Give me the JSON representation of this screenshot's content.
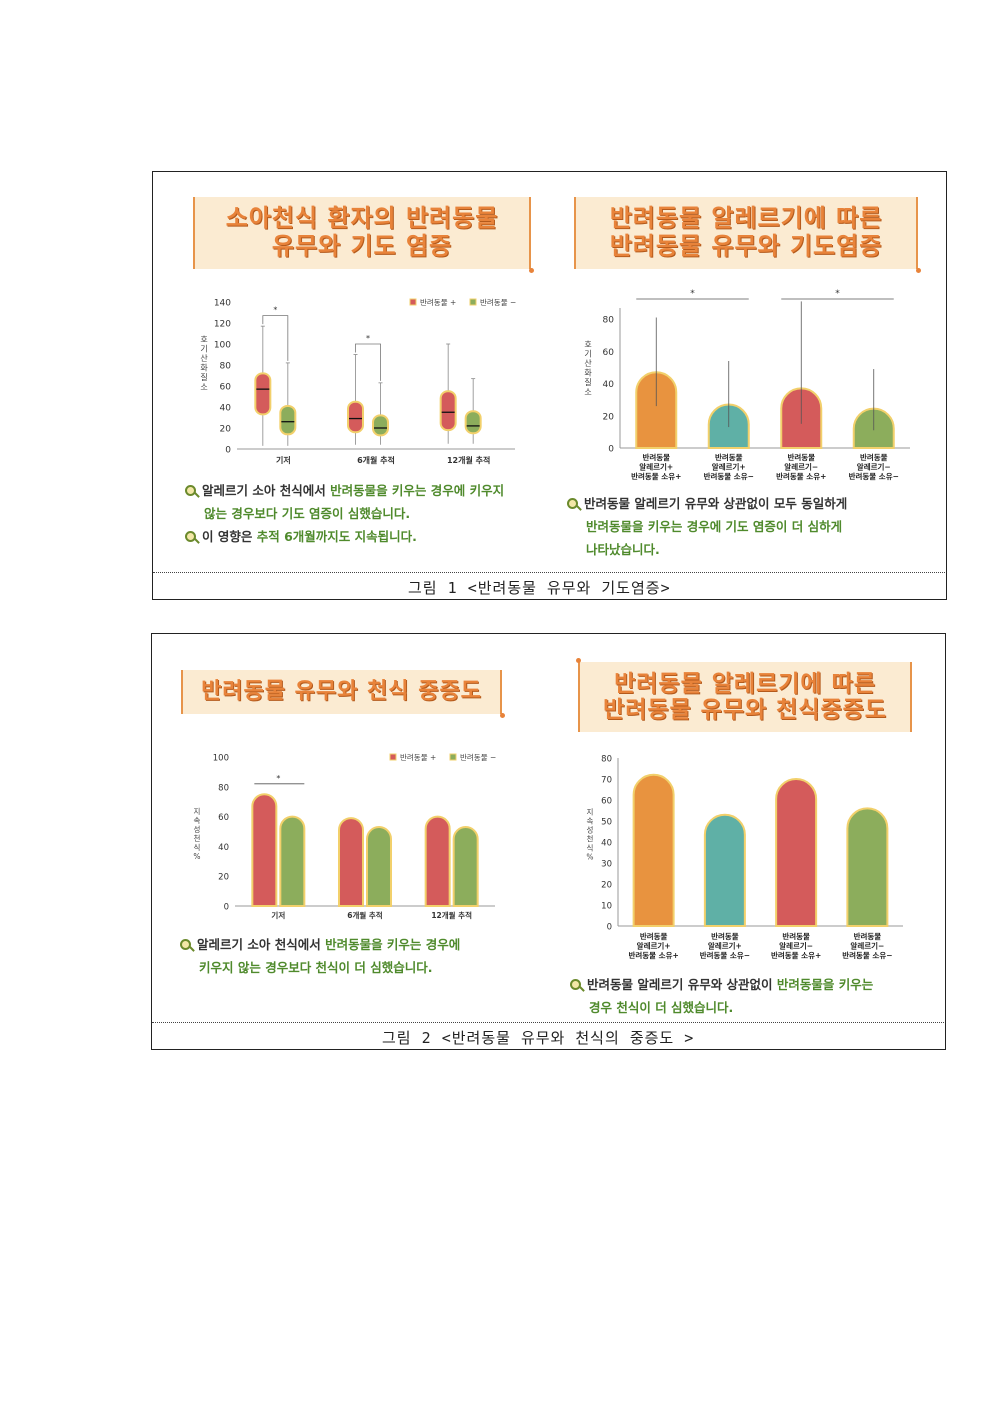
{
  "figure1": {
    "caption": "그림 1 <반려동물 유무와 기도염증>",
    "left": {
      "title_lines": [
        "소아천식 환자의 반려동물",
        "유무와 기도 염증"
      ],
      "notes": [
        {
          "segments": [
            {
              "t": "알레르기 소아 천식에서 ",
              "g": false
            },
            {
              "t": "반려동물을 키우는 경우에 키우지",
              "g": true
            }
          ],
          "cont": {
            "t": "않는 경우보다 기도 염증이 심했습니다.",
            "g": true
          }
        },
        {
          "segments": [
            {
              "t": "이 영향은 ",
              "g": false
            },
            {
              "t": "추적 6개월까지도 지속됩니다.",
              "g": true
            }
          ]
        }
      ]
    },
    "right": {
      "title_lines": [
        "반려동물 알레르기에 따른",
        "반려동물 유무와 기도염증"
      ],
      "notes": [
        {
          "segments": [
            {
              "t": "반려동물 알레르기 유무와 상관없이 모두 동일하게",
              "g": false
            }
          ],
          "cont": {
            "t": "반려동물을 키우는 경우에 기도 염증이 더 심하게",
            "g": true
          },
          "cont2": {
            "t": "나타났습니다.",
            "g": true
          }
        }
      ]
    }
  },
  "figure2": {
    "caption": "그림 2 <반려동물 유무와 천식의 중증도 >",
    "left": {
      "title_lines": [
        "반려동물 유무와 천식 중증도"
      ],
      "notes": [
        {
          "segments": [
            {
              "t": "알레르기 소아 천식에서 ",
              "g": false
            },
            {
              "t": "반려동물을 키우는 경우에",
              "g": true
            }
          ],
          "cont": {
            "t": "키우지 않는 경우보다 천식이 더 심했습니다.",
            "g": true
          }
        }
      ]
    },
    "right": {
      "title_lines": [
        "반려동물 알레르기에 따른",
        "반려동물 유무와 천식중증도"
      ],
      "notes": [
        {
          "segments": [
            {
              "t": "반려동물 알레르기 유무와 상관없이 ",
              "g": false
            },
            {
              "t": "반려동물을 키우는",
              "g": true
            }
          ],
          "cont": {
            "t": "경우 천식이 더 심했습니다.",
            "g": true
          }
        }
      ]
    }
  },
  "colors": {
    "pet_plus": "#d45b5b",
    "pet_minus": "#8cad5c",
    "orange": "#e8933f",
    "teal": "#5fb0a6",
    "outline": "#f2d06b",
    "title_bg": "#fbebd2",
    "title_text": "#e8833a",
    "note_green": "#4f8a2c"
  },
  "chart_data": [
    {
      "type": "box",
      "ylabel": "호기산화질소",
      "ylim": [
        0,
        140
      ],
      "yticks": [
        0,
        20,
        40,
        60,
        80,
        100,
        120,
        140
      ],
      "categories": [
        "기저",
        "6개월 추적",
        "12개월 추적"
      ],
      "legend": [
        "반려동물 +",
        "반려동물 −"
      ],
      "legend_position": "top-right",
      "series": [
        {
          "name": "반려동물 +",
          "color": "pet_plus",
          "boxes": [
            {
              "min": 3,
              "q1": 33,
              "median": 57,
              "q3": 72,
              "max": 117
            },
            {
              "min": 4,
              "q1": 16,
              "median": 29,
              "q3": 45,
              "max": 90
            },
            {
              "min": 5,
              "q1": 18,
              "median": 35,
              "q3": 55,
              "max": 100
            }
          ]
        },
        {
          "name": "반려동물 −",
          "color": "pet_minus",
          "boxes": [
            {
              "min": 3,
              "q1": 14,
              "median": 26,
              "q3": 41,
              "max": 82
            },
            {
              "min": 4,
              "q1": 13,
              "median": 20,
              "q3": 32,
              "max": 63
            },
            {
              "min": 5,
              "q1": 15,
              "median": 22,
              "q3": 36,
              "max": 67
            }
          ]
        }
      ],
      "significance": [
        {
          "category": 0,
          "label": "*"
        },
        {
          "category": 1,
          "label": "*"
        }
      ]
    },
    {
      "type": "bar",
      "ylabel": "호기산화질소",
      "ylim": [
        0,
        90
      ],
      "yticks": [
        0,
        20,
        40,
        60,
        80
      ],
      "categories": [
        [
          "반려동물",
          "알레르기+",
          "반려동물 소유+"
        ],
        [
          "반려동물",
          "알레르기+",
          "반려동물 소유−"
        ],
        [
          "반려동물",
          "알레르기−",
          "반려동물 소유+"
        ],
        [
          "반려동물",
          "알레르기−",
          "반려동물 소유−"
        ]
      ],
      "values": [
        47,
        27,
        37,
        24
      ],
      "error_low": [
        26,
        13,
        15,
        11
      ],
      "error_high": [
        81,
        54,
        91,
        49
      ],
      "colors": [
        "orange",
        "teal",
        "pet_plus",
        "pet_minus"
      ],
      "significance": [
        {
          "from": 0,
          "to": 1,
          "label": "*"
        },
        {
          "from": 2,
          "to": 3,
          "label": "*"
        }
      ]
    },
    {
      "type": "bar",
      "ylabel": "지속성 천식 %",
      "ylim": [
        0,
        100
      ],
      "yticks": [
        0,
        20,
        40,
        60,
        80,
        100
      ],
      "categories": [
        "기저",
        "6개월 추적",
        "12개월 추적"
      ],
      "legend": [
        "반려동물 +",
        "반려동물 −"
      ],
      "legend_position": "top-right",
      "series": [
        {
          "name": "반려동물 +",
          "color": "pet_plus",
          "values": [
            75,
            59,
            60
          ]
        },
        {
          "name": "반려동물 −",
          "color": "pet_minus",
          "values": [
            60,
            53,
            53
          ]
        }
      ],
      "significance": [
        {
          "category": 0,
          "label": "*"
        }
      ]
    },
    {
      "type": "bar",
      "ylabel": "지속성 천식 %",
      "ylim": [
        0,
        80
      ],
      "yticks": [
        0,
        10,
        20,
        30,
        40,
        50,
        60,
        70,
        80
      ],
      "categories": [
        [
          "반려동물",
          "알레르기+",
          "반려동물 소유+"
        ],
        [
          "반려동물",
          "알레르기+",
          "반려동물 소유−"
        ],
        [
          "반려동물",
          "알레르기−",
          "반려동물 소유+"
        ],
        [
          "반려동물",
          "알레르기−",
          "반려동물 소유−"
        ]
      ],
      "values": [
        72,
        53,
        70,
        56
      ],
      "colors": [
        "orange",
        "teal",
        "pet_plus",
        "pet_minus"
      ]
    }
  ]
}
